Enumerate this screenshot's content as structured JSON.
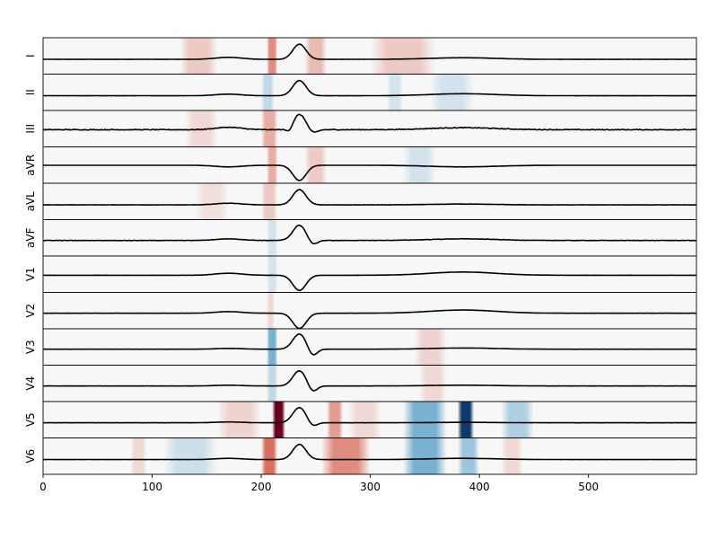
{
  "chart_data": {
    "type": "line",
    "title": "",
    "xlabel": "",
    "ylabel": "",
    "xlim": [
      0,
      599
    ],
    "x_ticks": [
      0,
      100,
      200,
      300,
      400,
      500
    ],
    "grid": false,
    "legend": "none",
    "colormap": "diverging red-blue",
    "attribution_colors": {
      "positive": "#67001f",
      "neutral": "#f7f7f7",
      "negative": "#053061"
    },
    "trace_color": "#000000",
    "leads": [
      {
        "name": "I",
        "beat_sign": 1,
        "noise": 0.15,
        "p_amp": 0.25,
        "t_amp": 0.2,
        "q_dip": 0.0,
        "s_dip": 0.0,
        "baseline": -0.2,
        "attributions": [
          [
            125,
            160,
            0.15
          ],
          [
            205,
            215,
            0.35
          ],
          [
            240,
            260,
            0.2
          ],
          [
            300,
            360,
            0.15
          ]
        ]
      },
      {
        "name": "II",
        "beat_sign": 1,
        "noise": 0.1,
        "p_amp": 0.2,
        "t_amp": 0.25,
        "q_dip": 0.0,
        "s_dip": 0.0,
        "baseline": -0.2,
        "attributions": [
          [
            200,
            212,
            -0.15
          ],
          [
            315,
            330,
            -0.1
          ],
          [
            355,
            395,
            -0.1
          ]
        ]
      },
      {
        "name": "III",
        "beat_sign": 1,
        "noise": 1.0,
        "p_amp": 0.3,
        "t_amp": 0.25,
        "q_dip": 0.6,
        "s_dip": 0.5,
        "baseline": 0.1,
        "attributions": [
          [
            200,
            215,
            0.25
          ],
          [
            130,
            160,
            0.1
          ]
        ]
      },
      {
        "name": "aVR",
        "beat_sign": -1,
        "noise": 0.1,
        "p_amp": -0.2,
        "t_amp": -0.2,
        "q_dip": 0.0,
        "s_dip": 0.0,
        "baseline": 0.2,
        "attributions": [
          [
            205,
            215,
            0.25
          ],
          [
            240,
            260,
            0.15
          ],
          [
            330,
            360,
            -0.1
          ]
        ]
      },
      {
        "name": "aVL",
        "beat_sign": 1,
        "noise": 0.3,
        "p_amp": 0.2,
        "t_amp": 0.1,
        "q_dip": 0.0,
        "s_dip": 0.0,
        "baseline": -0.2,
        "attributions": [
          [
            200,
            215,
            0.15
          ],
          [
            140,
            170,
            0.08
          ]
        ]
      },
      {
        "name": "aVF",
        "beat_sign": 1,
        "noise": 0.5,
        "p_amp": 0.2,
        "t_amp": 0.2,
        "q_dip": 0.0,
        "s_dip": 0.6,
        "baseline": -0.1,
        "attributions": [
          [
            205,
            215,
            -0.1
          ]
        ]
      },
      {
        "name": "V1",
        "beat_sign": -1,
        "noise": 0.1,
        "p_amp": 0.25,
        "t_amp": 0.4,
        "q_dip": 0.0,
        "s_dip": 0.0,
        "baseline": 0.1,
        "attributions": [
          [
            205,
            215,
            -0.1
          ]
        ]
      },
      {
        "name": "V2",
        "beat_sign": -1,
        "noise": 0.1,
        "p_amp": 0.2,
        "t_amp": 0.4,
        "q_dip": 0.0,
        "s_dip": 0.0,
        "baseline": -0.1,
        "attributions": [
          [
            205,
            212,
            0.1
          ]
        ]
      },
      {
        "name": "V3",
        "beat_sign": 1,
        "noise": 0.1,
        "p_amp": 0.1,
        "t_amp": 0.15,
        "q_dip": 0.0,
        "s_dip": 0.9,
        "baseline": -0.05,
        "attributions": [
          [
            205,
            215,
            -0.35
          ],
          [
            340,
            370,
            0.12
          ]
        ]
      },
      {
        "name": "V4",
        "beat_sign": 1,
        "noise": 0.1,
        "p_amp": 0.1,
        "t_amp": 0.1,
        "q_dip": 0.0,
        "s_dip": 0.8,
        "baseline": -0.1,
        "attributions": [
          [
            205,
            215,
            -0.15
          ],
          [
            345,
            370,
            0.1
          ]
        ]
      },
      {
        "name": "V5",
        "beat_sign": 1,
        "noise": 0.15,
        "p_amp": 0.1,
        "t_amp": 0.05,
        "q_dip": 0.0,
        "s_dip": 0.5,
        "baseline": -0.15,
        "attributions": [
          [
            210,
            222,
            1.0
          ],
          [
            160,
            200,
            0.12
          ],
          [
            260,
            275,
            0.3
          ],
          [
            280,
            310,
            0.1
          ],
          [
            330,
            370,
            -0.35
          ],
          [
            380,
            395,
            -0.95
          ],
          [
            420,
            450,
            -0.2
          ]
        ]
      },
      {
        "name": "V6",
        "beat_sign": 1,
        "noise": 0.1,
        "p_amp": 0.15,
        "t_amp": 0.15,
        "q_dip": 0.0,
        "s_dip": 0.0,
        "baseline": -0.2,
        "attributions": [
          [
            80,
            95,
            0.1
          ],
          [
            110,
            160,
            -0.12
          ],
          [
            200,
            215,
            0.45
          ],
          [
            255,
            300,
            0.35
          ],
          [
            330,
            370,
            -0.35
          ],
          [
            380,
            400,
            -0.25
          ],
          [
            420,
            440,
            0.1
          ]
        ]
      }
    ]
  }
}
